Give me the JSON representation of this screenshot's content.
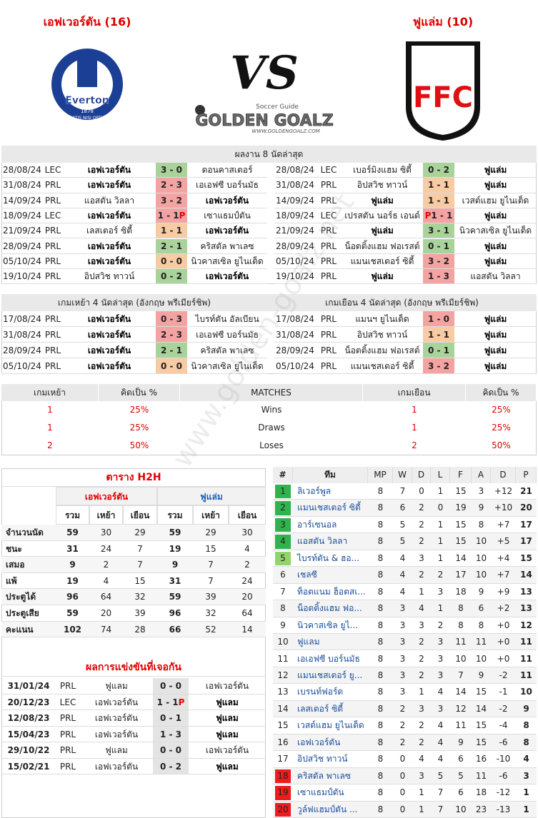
{
  "header": {
    "home_title": "เอฟเวอร์ตัน (16)",
    "away_title": "ฟูแล่ม (10)",
    "home_logo": {
      "name": "Everton",
      "year": "1878",
      "motto": "NIL SATIS NISI OPTIMUM"
    },
    "vs": "VS",
    "brand": {
      "tagline": "Soccer Guide",
      "name": "GOLDEN GOALZ",
      "url": "WWW.GOLDENGOALZ.COM"
    },
    "away_logo": "FFC"
  },
  "watermark": "www.golden-goalz.net",
  "recent": {
    "title": "ผลงาน 8 นัดล่าสุด",
    "left": [
      {
        "date": "28/08/24",
        "comp": "LEC",
        "home": "เอฟเวอร์ตัน",
        "score": "3 - 0",
        "away": "ดอนคาสเตอร์",
        "bg": "#a9d39b",
        "bold": "home"
      },
      {
        "date": "31/08/24",
        "comp": "PRL",
        "home": "เอฟเวอร์ตัน",
        "score": "2 - 3",
        "away": "เอเอฟซี บอร์นมัธ",
        "bg": "#f4a3a3",
        "bold": "home"
      },
      {
        "date": "14/09/24",
        "comp": "PRL",
        "home": "แอสตัน วิลลา",
        "score": "3 - 2",
        "away": "เอฟเวอร์ตัน",
        "bg": "#f4a3a3",
        "bold": "away"
      },
      {
        "date": "18/09/24",
        "comp": "LEC",
        "home": "เอฟเวอร์ตัน",
        "score": "1 - 1",
        "pen": "P",
        "pen_side": "after",
        "away": "เซาแธมป์ตัน",
        "bg": "#f4a3a3",
        "bold": "home"
      },
      {
        "date": "21/09/24",
        "comp": "PRL",
        "home": "เลสเตอร์ ซิตี้",
        "score": "1 - 1",
        "away": "เอฟเวอร์ตัน",
        "bg": "#f7cba3",
        "bold": "away"
      },
      {
        "date": "28/09/24",
        "comp": "PRL",
        "home": "เอฟเวอร์ตัน",
        "score": "2 - 1",
        "away": "คริสตัล พาเลซ",
        "bg": "#a9d39b",
        "bold": "home"
      },
      {
        "date": "05/10/24",
        "comp": "PRL",
        "home": "เอฟเวอร์ตัน",
        "score": "0 - 0",
        "away": "นิวคาสเซิล ยูไนเต็ด",
        "bg": "#f7cba3",
        "bold": "home"
      },
      {
        "date": "19/10/24",
        "comp": "PRL",
        "home": "อิปสวิช ทาวน์",
        "score": "0 - 2",
        "away": "เอฟเวอร์ตัน",
        "bg": "#a9d39b",
        "bold": "away"
      }
    ],
    "right": [
      {
        "date": "28/08/24",
        "comp": "LEC",
        "home": "เบอร์มิงแฮม ซิตี้",
        "score": "0 - 2",
        "away": "ฟูแล่ม",
        "bg": "#a9d39b",
        "bold": "away"
      },
      {
        "date": "31/08/24",
        "comp": "PRL",
        "home": "อิปสวิช ทาวน์",
        "score": "1 - 1",
        "away": "ฟูแล่ม",
        "bg": "#f7cba3",
        "bold": "away"
      },
      {
        "date": "14/09/24",
        "comp": "PRL",
        "home": "ฟูแล่ม",
        "score": "1 - 1",
        "away": "เวสต์แฮม ยูไนเต็ด",
        "bg": "#f7cba3",
        "bold": "home"
      },
      {
        "date": "18/09/24",
        "comp": "LEC",
        "home": "เปรสตัน นอร์ธ เอนด์",
        "score": "1 - 1",
        "pen": "P",
        "pen_side": "before",
        "away": "ฟูแล่ม",
        "bg": "#f4a3a3",
        "bold": "away"
      },
      {
        "date": "21/09/24",
        "comp": "PRL",
        "home": "ฟูแล่ม",
        "score": "3 - 1",
        "away": "นิวคาสเซิล ยูไนเต็ด",
        "bg": "#a9d39b",
        "bold": "home"
      },
      {
        "date": "28/09/24",
        "comp": "PRL",
        "home": "น็อตติ้งแฮม ฟอเรสต์",
        "score": "0 - 1",
        "away": "ฟูแล่ม",
        "bg": "#a9d39b",
        "bold": "away"
      },
      {
        "date": "05/10/24",
        "comp": "PRL",
        "home": "แมนเชสเตอร์ ซิตี้",
        "score": "3 - 2",
        "away": "ฟูแล่ม",
        "bg": "#f4a3a3",
        "bold": "away"
      },
      {
        "date": "19/10/24",
        "comp": "PRL",
        "home": "ฟูแล่ม",
        "score": "1 - 3",
        "away": "แอสตัน วิลลา",
        "bg": "#f4a3a3",
        "bold": "home"
      }
    ]
  },
  "recent_ha": {
    "left_title": "เกมเหย้า 4 นัดล่าสุด (อังกฤษ พรีเมียร์ชิพ)",
    "right_title": "เกมเยือน 4 นัดล่าสุด (อังกฤษ พรีเมียร์ชิพ)",
    "left": [
      {
        "date": "17/08/24",
        "comp": "PRL",
        "home": "เอฟเวอร์ตัน",
        "score": "0 - 3",
        "away": "ไบรท์ตัน อัลเบียน",
        "bg": "#f4a3a3",
        "bold": "home"
      },
      {
        "date": "31/08/24",
        "comp": "PRL",
        "home": "เอฟเวอร์ตัน",
        "score": "2 - 3",
        "away": "เอเอฟซี บอร์นมัธ",
        "bg": "#f4a3a3",
        "bold": "home"
      },
      {
        "date": "28/09/24",
        "comp": "PRL",
        "home": "เอฟเวอร์ตัน",
        "score": "2 - 1",
        "away": "คริสตัล พาเลซ",
        "bg": "#a9d39b",
        "bold": "home"
      },
      {
        "date": "05/10/24",
        "comp": "PRL",
        "home": "เอฟเวอร์ตัน",
        "score": "0 - 0",
        "away": "นิวคาสเซิล ยูไนเต็ด",
        "bg": "#f7cba3",
        "bold": "home"
      }
    ],
    "right": [
      {
        "date": "17/08/24",
        "comp": "PRL",
        "home": "แมนฯ ยูไนเต็ด",
        "score": "1 - 0",
        "away": "ฟูแล่ม",
        "bg": "#f4a3a3",
        "bold": "away"
      },
      {
        "date": "31/08/24",
        "comp": "PRL",
        "home": "อิปสวิช ทาวน์",
        "score": "1 - 1",
        "away": "ฟูแล่ม",
        "bg": "#f7cba3",
        "bold": "away"
      },
      {
        "date": "28/09/24",
        "comp": "PRL",
        "home": "น็อตติ้งแฮม ฟอเรสต์",
        "score": "0 - 1",
        "away": "ฟูแล่ม",
        "bg": "#a9d39b",
        "bold": "away"
      },
      {
        "date": "05/10/24",
        "comp": "PRL",
        "home": "แมนเชสเตอร์ ซิตี้",
        "score": "3 - 2",
        "away": "ฟูแล่ม",
        "bg": "#f4a3a3",
        "bold": "away"
      }
    ]
  },
  "summary": {
    "headers": [
      "เกมเหย้า",
      "คิดเป็น %",
      "MATCHES",
      "เกมเยือน",
      "คิดเป็น %"
    ],
    "rows": [
      [
        "1",
        "25%",
        "Wins",
        "1",
        "25%"
      ],
      [
        "1",
        "25%",
        "Draws",
        "1",
        "25%"
      ],
      [
        "2",
        "50%",
        "Loses",
        "2",
        "50%"
      ]
    ]
  },
  "h2h": {
    "title": "ตาราง H2H",
    "teams": [
      "เอฟเวอร์ตัน",
      "ฟูแล่ม"
    ],
    "subheaders": [
      "รวม",
      "เหย้า",
      "เยือน",
      "รวม",
      "เหย้า",
      "เยือน"
    ],
    "rows": [
      {
        "label": "จำนวนนัด",
        "values": [
          "59",
          "30",
          "29",
          "59",
          "29",
          "30"
        ]
      },
      {
        "label": "ชนะ",
        "values": [
          "31",
          "24",
          "7",
          "19",
          "15",
          "4"
        ]
      },
      {
        "label": "เสมอ",
        "values": [
          "9",
          "2",
          "7",
          "9",
          "7",
          "2"
        ]
      },
      {
        "label": "แพ้",
        "values": [
          "19",
          "4",
          "15",
          "31",
          "7",
          "24"
        ]
      },
      {
        "label": "ประตูได้",
        "values": [
          "96",
          "64",
          "32",
          "59",
          "39",
          "20"
        ]
      },
      {
        "label": "ประตูเสีย",
        "values": [
          "59",
          "20",
          "39",
          "96",
          "32",
          "64"
        ]
      },
      {
        "label": "คะแนน",
        "values": [
          "102",
          "74",
          "28",
          "66",
          "52",
          "14"
        ]
      }
    ]
  },
  "meetings": {
    "title": "ผลการแข่งขันที่เจอกัน",
    "rows": [
      {
        "date": "31/01/24",
        "comp": "PRL",
        "home": "ฟูแลม",
        "score": "0 - 0",
        "away": "เอฟเวอร์ตัน",
        "bg": "#e4e4e4"
      },
      {
        "date": "20/12/23",
        "comp": "LEC",
        "home": "เอฟเวอร์ตัน",
        "score": "1 - 1",
        "pen": "P",
        "pen_side": "after",
        "away": "ฟูแลม",
        "bg": "#e4e4e4",
        "bold": "away"
      },
      {
        "date": "12/08/23",
        "comp": "PRL",
        "home": "เอฟเวอร์ตัน",
        "score": "0 - 1",
        "away": "ฟูแลม",
        "bg": "#e4e4e4",
        "bold": "away"
      },
      {
        "date": "15/04/23",
        "comp": "PRL",
        "home": "เอฟเวอร์ตัน",
        "score": "1 - 3",
        "away": "ฟูแลม",
        "bg": "#e4e4e4",
        "bold": "away"
      },
      {
        "date": "29/10/22",
        "comp": "PRL",
        "home": "ฟูแลม",
        "score": "0 - 0",
        "away": "เอฟเวอร์ตัน",
        "bg": "#e4e4e4"
      },
      {
        "date": "15/02/21",
        "comp": "PRL",
        "home": "เอฟเวอร์ตัน",
        "score": "0 - 2",
        "away": "ฟูแลม",
        "bg": "#e4e4e4",
        "bold": "away"
      }
    ]
  },
  "standings": {
    "headers": [
      "#",
      "ทีม",
      "MP",
      "W",
      "D",
      "L",
      "F",
      "A",
      "D",
      "P"
    ],
    "rows": [
      {
        "pos": "1",
        "team": "ลิเวอร์พูล",
        "mp": "8",
        "w": "7",
        "d": "0",
        "l": "1",
        "f": "15",
        "a": "3",
        "gd": "+12",
        "pts": "21",
        "badge": "#2fb34c"
      },
      {
        "pos": "2",
        "team": "แมนเชสเตอร์ ซิตี้",
        "mp": "8",
        "w": "6",
        "d": "2",
        "l": "0",
        "f": "19",
        "a": "9",
        "gd": "+10",
        "pts": "20",
        "badge": "#2fb34c"
      },
      {
        "pos": "3",
        "team": "อาร์เซนอล",
        "mp": "8",
        "w": "5",
        "d": "2",
        "l": "1",
        "f": "15",
        "a": "8",
        "gd": "+7",
        "pts": "17",
        "badge": "#2fb34c"
      },
      {
        "pos": "4",
        "team": "แอสตัน วิลลา",
        "mp": "8",
        "w": "5",
        "d": "2",
        "l": "1",
        "f": "15",
        "a": "10",
        "gd": "+5",
        "pts": "17",
        "badge": "#2fb34c"
      },
      {
        "pos": "5",
        "team": "ไบรท์ตัน & ฮอ...",
        "mp": "8",
        "w": "4",
        "d": "3",
        "l": "1",
        "f": "14",
        "a": "10",
        "gd": "+4",
        "pts": "15",
        "badge": "#92d46c"
      },
      {
        "pos": "6",
        "team": "เชลซี",
        "mp": "8",
        "w": "4",
        "d": "2",
        "l": "2",
        "f": "17",
        "a": "10",
        "gd": "+7",
        "pts": "14"
      },
      {
        "pos": "7",
        "team": "ท็อตแนม ฮ็อตสเ...",
        "mp": "8",
        "w": "4",
        "d": "1",
        "l": "3",
        "f": "18",
        "a": "9",
        "gd": "+9",
        "pts": "13"
      },
      {
        "pos": "8",
        "team": "น็อตติ้งแฮม ฟอ...",
        "mp": "8",
        "w": "3",
        "d": "4",
        "l": "1",
        "f": "8",
        "a": "6",
        "gd": "+2",
        "pts": "13"
      },
      {
        "pos": "9",
        "team": "นิวคาสเซิล ยูไ...",
        "mp": "8",
        "w": "3",
        "d": "3",
        "l": "2",
        "f": "8",
        "a": "8",
        "gd": "+0",
        "pts": "12"
      },
      {
        "pos": "10",
        "team": "ฟูแลม",
        "mp": "8",
        "w": "3",
        "d": "2",
        "l": "3",
        "f": "11",
        "a": "11",
        "gd": "+0",
        "pts": "11"
      },
      {
        "pos": "11",
        "team": "เอเอฟซี บอร์นมัธ",
        "mp": "8",
        "w": "3",
        "d": "2",
        "l": "3",
        "f": "10",
        "a": "10",
        "gd": "+0",
        "pts": "11"
      },
      {
        "pos": "12",
        "team": "แมนเชสเตอร์ ยู...",
        "mp": "8",
        "w": "3",
        "d": "2",
        "l": "3",
        "f": "7",
        "a": "9",
        "gd": "-2",
        "pts": "11"
      },
      {
        "pos": "13",
        "team": "เบรนท์ฟอร์ด",
        "mp": "8",
        "w": "3",
        "d": "1",
        "l": "4",
        "f": "14",
        "a": "15",
        "gd": "-1",
        "pts": "10"
      },
      {
        "pos": "14",
        "team": "เลสเตอร์ ซิตี้",
        "mp": "8",
        "w": "2",
        "d": "3",
        "l": "3",
        "f": "12",
        "a": "14",
        "gd": "-2",
        "pts": "9"
      },
      {
        "pos": "15",
        "team": "เวสต์แฮม ยูไนเต็ด",
        "mp": "8",
        "w": "2",
        "d": "2",
        "l": "4",
        "f": "11",
        "a": "15",
        "gd": "-4",
        "pts": "8"
      },
      {
        "pos": "16",
        "team": "เอฟเวอร์ตัน",
        "mp": "8",
        "w": "2",
        "d": "2",
        "l": "4",
        "f": "9",
        "a": "15",
        "gd": "-6",
        "pts": "8"
      },
      {
        "pos": "17",
        "team": "อิปสวิช ทาวน์",
        "mp": "8",
        "w": "0",
        "d": "4",
        "l": "4",
        "f": "6",
        "a": "16",
        "gd": "-10",
        "pts": "4"
      },
      {
        "pos": "18",
        "team": "คริสตัล พาเลซ",
        "mp": "8",
        "w": "0",
        "d": "3",
        "l": "5",
        "f": "5",
        "a": "11",
        "gd": "-6",
        "pts": "3",
        "badge": "#ee1c1c"
      },
      {
        "pos": "19",
        "team": "เซาแธมป์ตัน",
        "mp": "8",
        "w": "0",
        "d": "1",
        "l": "7",
        "f": "6",
        "a": "18",
        "gd": "-12",
        "pts": "1",
        "badge": "#ee1c1c"
      },
      {
        "pos": "20",
        "team": "วูล์ฟแฮมป์ตัน ...",
        "mp": "8",
        "w": "0",
        "d": "1",
        "l": "7",
        "f": "10",
        "a": "23",
        "gd": "-13",
        "pts": "1",
        "badge": "#ee1c1c"
      }
    ]
  }
}
